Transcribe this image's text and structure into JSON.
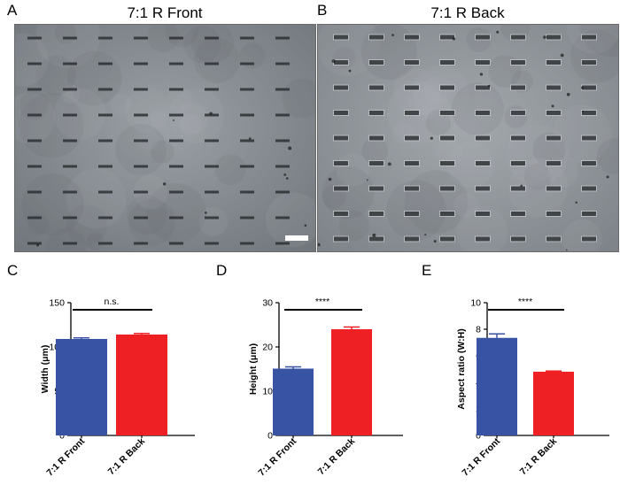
{
  "panels": {
    "A": {
      "letter": "A",
      "title": "7:1 R Front"
    },
    "B": {
      "letter": "B",
      "title": "7:1 R Back"
    },
    "C": {
      "letter": "C"
    },
    "D": {
      "letter": "D"
    },
    "E": {
      "letter": "E"
    }
  },
  "colors": {
    "front": "#3953a4",
    "back": "#ee2024",
    "background_micrograph": "#8a8f94"
  },
  "chart_data": [
    {
      "panel": "C",
      "type": "bar",
      "categories": [
        "7:1 R Front",
        "7:1 R Back"
      ],
      "values": [
        109,
        114
      ],
      "errors": [
        1.2,
        1.2
      ],
      "ylabel": "Width (μm)",
      "ylim": [
        0,
        150
      ],
      "yticks": [
        0,
        50,
        100,
        150
      ],
      "significance": "n.s."
    },
    {
      "panel": "D",
      "type": "bar",
      "categories": [
        "7:1 R Front",
        "7:1 R Back"
      ],
      "values": [
        15.1,
        24.0
      ],
      "errors": [
        0.4,
        0.5
      ],
      "ylabel": "Height (μm)",
      "ylim": [
        0,
        30
      ],
      "yticks": [
        0,
        10,
        20,
        30
      ],
      "significance": "****"
    },
    {
      "panel": "E",
      "type": "bar",
      "categories": [
        "7:1 R Front",
        "7:1 R Back"
      ],
      "values": [
        7.35,
        4.8
      ],
      "errors": [
        0.3,
        0.05
      ],
      "ylabel": "Aspect ratio (W:H)",
      "ylim": [
        0,
        10
      ],
      "yticks": [
        0,
        2,
        4,
        6,
        8,
        10
      ],
      "significance": "****"
    }
  ]
}
